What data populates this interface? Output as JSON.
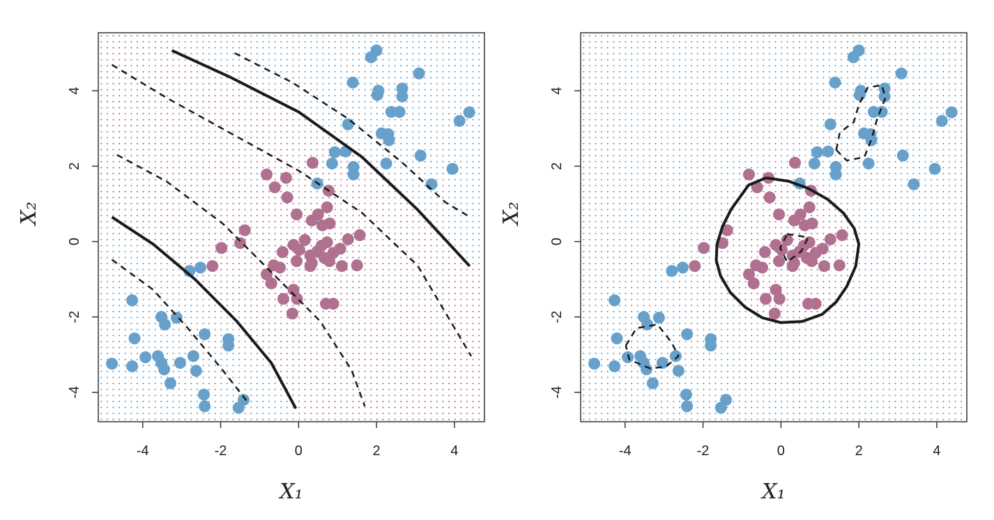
{
  "chart_data": [
    {
      "type": "scatter",
      "xlabel": "X₁",
      "ylabel": "X₂",
      "xlim": [
        -5.14,
        4.77
      ],
      "ylim": [
        -4.78,
        5.54
      ],
      "xticks": [
        -4,
        -2,
        0,
        2,
        4
      ],
      "yticks": [
        -4,
        -2,
        0,
        2,
        4
      ],
      "series": [
        {
          "color": "#67a1cb",
          "x": [
            2.0,
            1.86,
            3.09,
            1.39,
            2.05,
            2.66,
            2.02,
            2.66,
            4.38,
            2.38,
            2.59,
            4.13,
            1.27,
            2.13,
            2.3,
            2.32,
            0.93,
            1.21,
            3.13,
            0.86,
            2.25,
            1.41,
            3.95,
            1.41,
            3.41,
            0.48,
            -2.8,
            -2.52,
            -4.27,
            -3.52,
            -3.13,
            -3.43,
            -4.21,
            -2.41,
            -1.8,
            -1.8,
            -3.93,
            -3.61,
            -3.52,
            -3.04,
            -4.79,
            -2.7,
            -4.27,
            -3.45,
            -2.63,
            -3.29,
            -2.43,
            -1.41,
            -2.41,
            -1.54
          ],
          "y": [
            5.07,
            4.89,
            4.46,
            4.22,
            4.0,
            4.06,
            3.89,
            3.85,
            3.43,
            3.44,
            3.44,
            3.2,
            3.11,
            2.87,
            2.85,
            2.69,
            2.37,
            2.39,
            2.28,
            2.07,
            2.07,
            1.98,
            1.93,
            1.78,
            1.52,
            1.54,
            -0.78,
            -0.69,
            -1.56,
            -2.0,
            -2.02,
            -2.2,
            -2.57,
            -2.46,
            -2.59,
            -2.76,
            -3.07,
            -3.04,
            -3.22,
            -3.22,
            -3.24,
            -3.04,
            -3.31,
            -3.39,
            -3.43,
            -3.76,
            -4.06,
            -4.2,
            -4.37,
            -4.41
          ]
        },
        {
          "color": "#b0708f",
          "x": [
            0.36,
            -0.82,
            -0.32,
            -0.61,
            0.77,
            -0.29,
            0.73,
            -0.05,
            0.5,
            0.34,
            0.8,
            0.61,
            -1.38,
            1.57,
            1.27,
            -1.5,
            0.16,
            -0.13,
            0.73,
            0.59,
            -1.98,
            0.02,
            1.07,
            -0.41,
            0.48,
            0.89,
            0.3,
            -0.05,
            0.79,
            0.34,
            0.66,
            -2.21,
            -0.64,
            -0.48,
            1.11,
            1.5,
            0.3,
            -0.82,
            -0.7,
            -0.13,
            -0.39,
            -0.04,
            0.7,
            0.89,
            -0.16
          ],
          "y": [
            2.09,
            1.78,
            1.69,
            1.44,
            1.35,
            1.17,
            0.91,
            0.72,
            0.72,
            0.56,
            0.48,
            0.43,
            0.3,
            0.17,
            0.06,
            -0.04,
            0.04,
            -0.09,
            -0.02,
            -0.11,
            -0.17,
            -0.22,
            -0.19,
            -0.28,
            -0.26,
            -0.3,
            -0.37,
            -0.52,
            -0.52,
            -0.57,
            -0.43,
            -0.65,
            -0.63,
            -0.69,
            -0.65,
            -0.63,
            -0.65,
            -0.87,
            -1.11,
            -1.28,
            -1.52,
            -1.52,
            -1.65,
            -1.65,
            -1.91
          ]
        }
      ],
      "boundaries": [
        {
          "dashed": false,
          "x": [
            -3.25,
            -1.77,
            0,
            1.63,
            3.05,
            4.39
          ],
          "y": [
            5.07,
            4.37,
            3.44,
            2.24,
            0.85,
            -0.65
          ]
        },
        {
          "dashed": false,
          "x": [
            -4.79,
            -3.73,
            -2.66,
            -1.59,
            -0.7,
            -0.07
          ],
          "y": [
            0.65,
            -0.07,
            -1.0,
            -2.11,
            -3.22,
            -4.43
          ]
        },
        {
          "dashed": true,
          "x": [
            -1.64,
            -0.16,
            1.27,
            2.7,
            3.77,
            4.43
          ],
          "y": [
            5.0,
            4.22,
            3.26,
            2.06,
            1.04,
            0.63
          ]
        },
        {
          "dashed": true,
          "x": [
            -4.79,
            -3.38,
            -1.77,
            0.02,
            1.63,
            3.05,
            4.43
          ],
          "y": [
            4.69,
            3.81,
            2.89,
            1.87,
            0.76,
            -0.63,
            -3.04
          ]
        },
        {
          "dashed": true,
          "x": [
            -4.66,
            -3.38,
            -1.95,
            -0.7,
            0.55,
            1.36,
            1.7
          ],
          "y": [
            2.3,
            1.59,
            0.48,
            -0.81,
            -2.11,
            -3.41,
            -4.37
          ]
        },
        {
          "dashed": true,
          "x": [
            -4.79,
            -3.73,
            -2.84,
            -1.95,
            -1.32
          ],
          "y": [
            -0.48,
            -1.28,
            -2.3,
            -3.41,
            -4.24
          ]
        }
      ]
    },
    {
      "type": "scatter",
      "xlabel": "X₁",
      "ylabel": "X₂",
      "xlim": [
        -5.14,
        4.77
      ],
      "ylim": [
        -4.78,
        5.54
      ],
      "xticks": [
        -4,
        -2,
        0,
        2,
        4
      ],
      "yticks": [
        -4,
        -2,
        0,
        2,
        4
      ],
      "series": [
        {
          "color": "#67a1cb",
          "x": [
            2.0,
            1.86,
            3.09,
            1.39,
            2.05,
            2.66,
            2.02,
            2.66,
            4.38,
            2.38,
            2.59,
            4.13,
            1.27,
            2.13,
            2.3,
            2.32,
            0.93,
            1.21,
            3.13,
            0.86,
            2.25,
            1.41,
            3.95,
            1.41,
            3.41,
            0.48,
            -2.8,
            -2.52,
            -4.27,
            -3.52,
            -3.13,
            -3.43,
            -4.21,
            -2.41,
            -1.8,
            -1.8,
            -3.93,
            -3.61,
            -3.52,
            -3.04,
            -4.79,
            -2.7,
            -4.27,
            -3.45,
            -2.63,
            -3.29,
            -2.43,
            -1.41,
            -2.41,
            -1.54
          ],
          "y": [
            5.07,
            4.89,
            4.46,
            4.22,
            4.0,
            4.06,
            3.89,
            3.85,
            3.43,
            3.44,
            3.44,
            3.2,
            3.11,
            2.87,
            2.85,
            2.69,
            2.37,
            2.39,
            2.28,
            2.07,
            2.07,
            1.98,
            1.93,
            1.78,
            1.52,
            1.54,
            -0.78,
            -0.69,
            -1.56,
            -2.0,
            -2.02,
            -2.2,
            -2.57,
            -2.46,
            -2.59,
            -2.76,
            -3.07,
            -3.04,
            -3.22,
            -3.22,
            -3.24,
            -3.04,
            -3.31,
            -3.39,
            -3.43,
            -3.76,
            -4.06,
            -4.2,
            -4.37,
            -4.41
          ]
        },
        {
          "color": "#b0708f",
          "x": [
            0.36,
            -0.82,
            -0.32,
            -0.61,
            0.77,
            -0.29,
            0.73,
            -0.05,
            0.5,
            0.34,
            0.8,
            0.61,
            -1.38,
            1.57,
            1.27,
            -1.5,
            0.16,
            -0.13,
            0.73,
            0.59,
            -1.98,
            0.02,
            1.07,
            -0.41,
            0.48,
            0.89,
            0.3,
            -0.05,
            0.79,
            0.34,
            0.66,
            -2.21,
            -0.64,
            -0.48,
            1.11,
            1.5,
            0.3,
            -0.82,
            -0.7,
            -0.13,
            -0.39,
            -0.04,
            0.7,
            0.89,
            -0.16
          ],
          "y": [
            2.09,
            1.78,
            1.69,
            1.44,
            1.35,
            1.17,
            0.91,
            0.72,
            0.72,
            0.56,
            0.48,
            0.43,
            0.3,
            0.17,
            0.06,
            -0.04,
            0.04,
            -0.09,
            -0.02,
            -0.11,
            -0.17,
            -0.22,
            -0.19,
            -0.28,
            -0.26,
            -0.3,
            -0.37,
            -0.52,
            -0.52,
            -0.57,
            -0.43,
            -0.65,
            -0.63,
            -0.69,
            -0.65,
            -0.63,
            -0.65,
            -0.87,
            -1.11,
            -1.28,
            -1.52,
            -1.52,
            -1.65,
            -1.65,
            -1.91
          ]
        }
      ],
      "boundaries": [
        {
          "dashed": false,
          "x": [
            -0.38,
            0.2,
            0.7,
            1.2,
            1.6,
            1.88,
            2.0,
            1.92,
            1.69,
            1.42,
            1.06,
            0.55,
            0,
            -0.48,
            -0.92,
            -1.3,
            -1.55,
            -1.66,
            -1.64,
            -1.5,
            -1.28,
            -0.83,
            -0.38
          ],
          "y": [
            1.69,
            1.6,
            1.41,
            1.12,
            0.76,
            0.35,
            -0.07,
            -0.65,
            -1.19,
            -1.6,
            -1.93,
            -2.12,
            -2.15,
            -2.02,
            -1.74,
            -1.35,
            -0.91,
            -0.5,
            -0.07,
            0.4,
            0.85,
            1.5,
            1.69
          ]
        },
        {
          "dashed": true,
          "x": [
            1.42,
            1.69,
            2.14,
            2.32,
            2.47,
            2.68,
            2.59,
            2.23,
            2.0,
            1.87,
            1.51,
            1.42
          ],
          "y": [
            2.43,
            2.15,
            2.24,
            2.7,
            3.26,
            3.81,
            4.15,
            4.09,
            3.63,
            3.17,
            2.89,
            2.43
          ]
        },
        {
          "dashed": true,
          "x": [
            -3.98,
            -3.71,
            -3.17,
            -2.81,
            -2.63,
            -2.94,
            -3.35,
            -3.89,
            -3.98
          ],
          "y": [
            -2.76,
            -2.3,
            -2.2,
            -2.67,
            -3.04,
            -3.31,
            -3.37,
            -3.13,
            -2.76
          ]
        },
        {
          "dashed": true,
          "x": [
            0.16,
            0.7,
            0.52,
            0.16,
            -0.02,
            0.16
          ],
          "y": [
            0.2,
            0.11,
            -0.26,
            -0.54,
            -0.17,
            0.2
          ]
        }
      ]
    }
  ]
}
